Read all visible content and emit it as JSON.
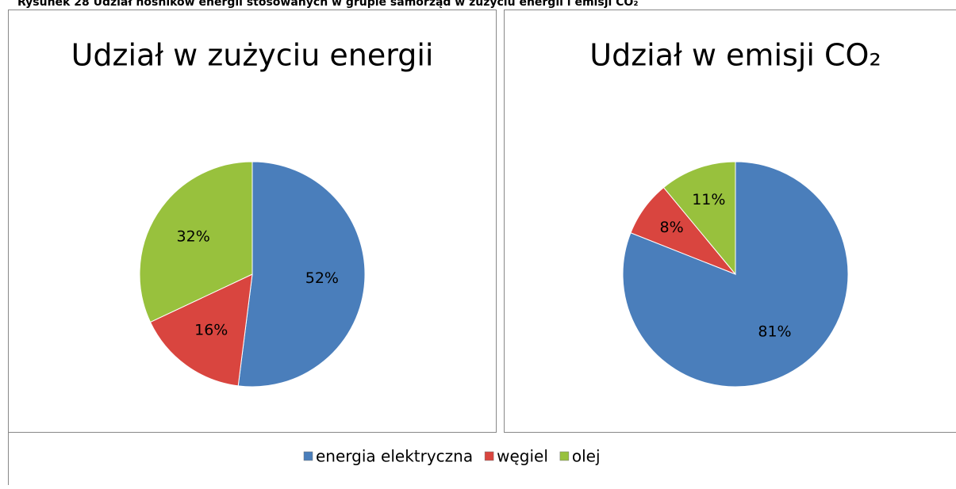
{
  "caption": "Rysunek 28 Udział nośników energii stosowanych w grupie samorząd w zużyciu energii i emisji CO₂",
  "chart_data": [
    {
      "type": "pie",
      "title": "Udział w zużyciu energii",
      "categories": [
        "energia elektryczna",
        "węgiel",
        "olej"
      ],
      "values": [
        52,
        16,
        32
      ],
      "value_labels": [
        "52%",
        "16%",
        "32%"
      ],
      "colors": [
        "#4a7ebb",
        "#d9453f",
        "#98c13d"
      ]
    },
    {
      "type": "pie",
      "title": "Udział w emisji CO₂",
      "categories": [
        "energia elektryczna",
        "węgiel",
        "olej"
      ],
      "values": [
        81,
        8,
        11
      ],
      "value_labels": [
        "81%",
        "8%",
        "11%"
      ],
      "colors": [
        "#4a7ebb",
        "#d9453f",
        "#98c13d"
      ]
    }
  ]
}
